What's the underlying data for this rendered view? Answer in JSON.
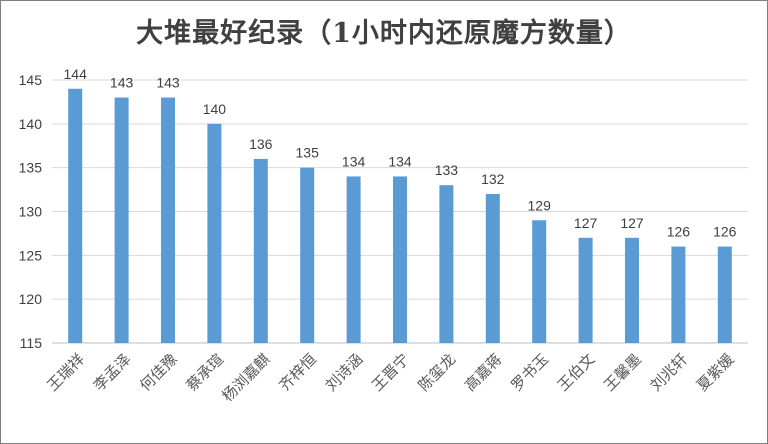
{
  "chart_data": {
    "type": "bar",
    "title": "大堆最好纪录（1小时内还原魔方数量）",
    "xlabel": "",
    "ylabel": "",
    "categories": [
      "王瑞祥",
      "李孟泽",
      "何佳豫",
      "蔡承瑄",
      "杨浏嘉麒",
      "齐梓恒",
      "刘诗涵",
      "王晋宁",
      "陈玺龙",
      "高嘉蒋",
      "罗书玉",
      "王伯文",
      "王馨墨",
      "刘兆轩",
      "夏紫媛"
    ],
    "values": [
      144,
      143,
      143,
      140,
      136,
      135,
      134,
      134,
      133,
      132,
      129,
      127,
      127,
      126,
      126
    ],
    "ylim": [
      115,
      145
    ],
    "yticks": [
      115,
      120,
      125,
      130,
      135,
      140,
      145
    ],
    "grid": true,
    "data_labels": true,
    "legend": "none",
    "bar_color": "#5b9bd5"
  }
}
